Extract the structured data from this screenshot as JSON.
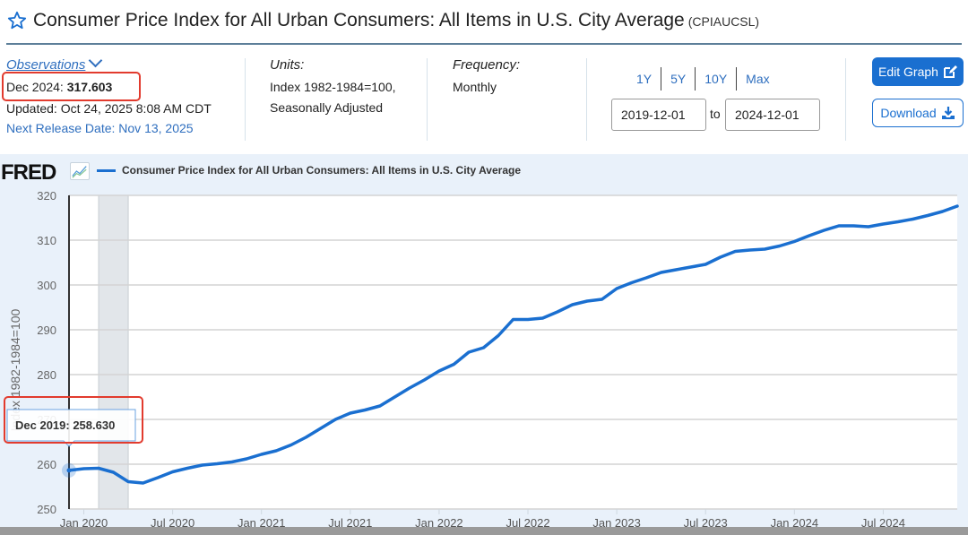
{
  "header": {
    "title": "Consumer Price Index for All Urban Consumers: All Items in U.S. City Average",
    "series_code": "(CPIAUCSL)",
    "star_icon": "star-outline-icon"
  },
  "observations": {
    "link_label": "Observations",
    "latest_label": "Dec 2024:",
    "latest_value": "317.603",
    "updated": "Updated: Oct 24, 2025 8:08 AM CDT",
    "next_release": "Next Release Date: Nov 13, 2025"
  },
  "units": {
    "label": "Units:",
    "line1": "Index 1982-1984=100,",
    "line2": "Seasonally Adjusted"
  },
  "frequency": {
    "label": "Frequency:",
    "value": "Monthly"
  },
  "range": {
    "presets": [
      "1Y",
      "5Y",
      "10Y",
      "Max"
    ],
    "start": "2019-12-01",
    "to_label": "to",
    "end": "2024-12-01"
  },
  "buttons": {
    "edit_graph": "Edit Graph",
    "download": "Download"
  },
  "colors": {
    "accent": "#1a6fd0",
    "link": "#2f6fbf",
    "highlight_box": "#e23b2e",
    "recession_shade": "#e2e6ea",
    "chart_bg": "#e9f1fa"
  },
  "chart_data": {
    "type": "line",
    "brand": "FRED",
    "title": "Consumer Price Index for All Urban Consumers: All Items in U.S. City Average",
    "xlabel": "",
    "ylabel": "Index 1982-1984=100",
    "ylim": [
      250,
      320
    ],
    "yticks": [
      250,
      260,
      270,
      280,
      290,
      300,
      310,
      320
    ],
    "xlim": [
      "2019-12",
      "2024-12"
    ],
    "xticks": [
      "Jan 2020",
      "Jul 2020",
      "Jan 2021",
      "Jul 2021",
      "Jan 2022",
      "Jul 2022",
      "Jan 2023",
      "Jul 2023",
      "Jan 2024",
      "Jul 2024"
    ],
    "xtick_months": [
      1,
      7,
      13,
      19,
      25,
      31,
      37,
      43,
      49,
      55
    ],
    "grid": true,
    "legend": "top-left",
    "recession": {
      "start_month": 2,
      "end_month": 4
    },
    "tooltip": {
      "label": "Dec 2019:",
      "value": "258.630",
      "month_index": 0
    },
    "series": [
      {
        "name": "Consumer Price Index for All Urban Consumers: All Items in U.S. City Average",
        "color": "#1a6fd0",
        "x": [
          "2019-12",
          "2020-01",
          "2020-02",
          "2020-03",
          "2020-04",
          "2020-05",
          "2020-06",
          "2020-07",
          "2020-08",
          "2020-09",
          "2020-10",
          "2020-11",
          "2020-12",
          "2021-01",
          "2021-02",
          "2021-03",
          "2021-04",
          "2021-05",
          "2021-06",
          "2021-07",
          "2021-08",
          "2021-09",
          "2021-10",
          "2021-11",
          "2021-12",
          "2022-01",
          "2022-02",
          "2022-03",
          "2022-04",
          "2022-05",
          "2022-06",
          "2022-07",
          "2022-08",
          "2022-09",
          "2022-10",
          "2022-11",
          "2022-12",
          "2023-01",
          "2023-02",
          "2023-03",
          "2023-04",
          "2023-05",
          "2023-06",
          "2023-07",
          "2023-08",
          "2023-09",
          "2023-10",
          "2023-11",
          "2023-12",
          "2024-01",
          "2024-02",
          "2024-03",
          "2024-04",
          "2024-05",
          "2024-06",
          "2024-07",
          "2024-08",
          "2024-09",
          "2024-10",
          "2024-11",
          "2024-12"
        ],
        "values": [
          258.63,
          259.0,
          259.1,
          258.2,
          256.1,
          255.8,
          257.0,
          258.3,
          259.1,
          259.8,
          260.1,
          260.5,
          261.2,
          262.2,
          263.0,
          264.3,
          266.0,
          268.0,
          270.0,
          271.4,
          272.1,
          273.0,
          275.0,
          277.0,
          278.8,
          280.8,
          282.3,
          285.0,
          286.0,
          288.7,
          292.3,
          292.3,
          292.6,
          294.0,
          295.6,
          296.4,
          296.8,
          299.2,
          300.5,
          301.6,
          302.8,
          303.4,
          304.0,
          304.6,
          306.2,
          307.5,
          307.8,
          308.0,
          308.7,
          309.7,
          311.0,
          312.2,
          313.2,
          313.2,
          313.0,
          313.6,
          314.1,
          314.7,
          315.5,
          316.4,
          317.603
        ]
      }
    ]
  }
}
